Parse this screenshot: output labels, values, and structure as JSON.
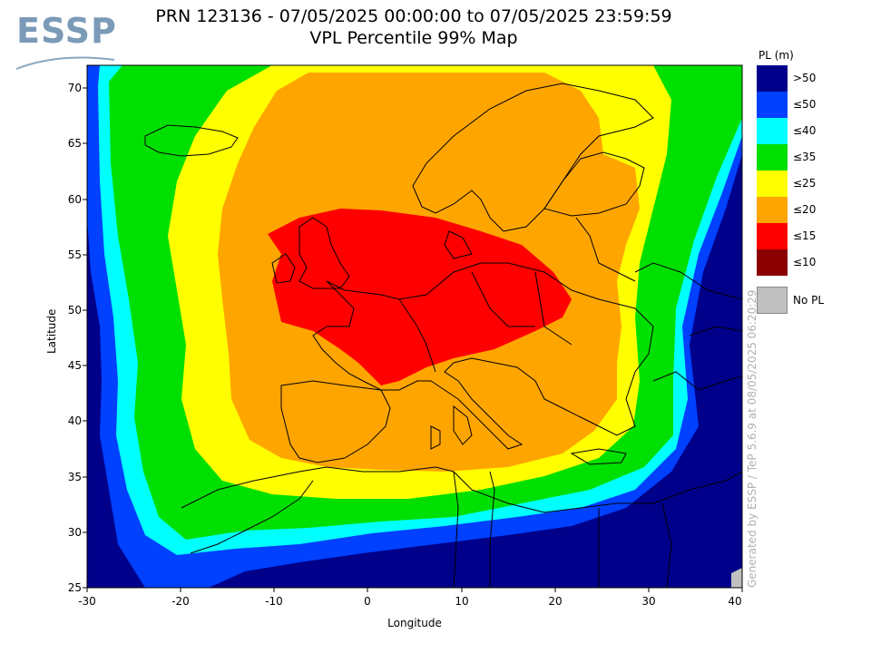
{
  "logo": {
    "text": "ESSP"
  },
  "title": {
    "line1": "PRN 123136 - 07/05/2025 00:00:00 to 07/05/2025 23:59:59",
    "line2": "VPL Percentile 99% Map"
  },
  "axes": {
    "xlabel": "Longitude",
    "ylabel": "Latitude",
    "xticks": [
      "-30",
      "-20",
      "-10",
      "0",
      "10",
      "20",
      "30",
      "40"
    ],
    "yticks": [
      "70",
      "65",
      "60",
      "55",
      "50",
      "45",
      "40",
      "35",
      "30",
      "25"
    ],
    "xlim": [
      -30,
      40
    ],
    "ylim": [
      25,
      72
    ]
  },
  "legend": {
    "title": "PL (m)",
    "items": [
      {
        "label": ">50",
        "color": "#00008b"
      },
      {
        "label": "≤50",
        "color": "#0040ff"
      },
      {
        "label": "≤40",
        "color": "#00ffff"
      },
      {
        "label": "≤35",
        "color": "#00e000"
      },
      {
        "label": "≤25",
        "color": "#ffff00"
      },
      {
        "label": "≤20",
        "color": "#ffa500"
      },
      {
        "label": "≤15",
        "color": "#ff0000"
      },
      {
        "label": "≤10",
        "color": "#8b0000"
      }
    ],
    "nopl_label": "No PL",
    "nopl_color": "#c0c0c0"
  },
  "watermark": "Generated by ESSP / TeP 5.6.9 at 08/05/2025 06:20:29",
  "chart_data": {
    "type": "heatmap",
    "title": "VPL Percentile 99% Map",
    "xlabel": "Longitude",
    "ylabel": "Latitude",
    "xlim": [
      -30,
      40
    ],
    "ylim": [
      25,
      72
    ],
    "value_unit": "PL (m)",
    "zones_center_to_edge": [
      "≤15",
      "≤20",
      "≤25",
      "≤35",
      "≤40",
      "≤50",
      ">50"
    ],
    "red_zone_region": "Central Europe, approx. lon -10 to 22, lat 43 to 57"
  }
}
